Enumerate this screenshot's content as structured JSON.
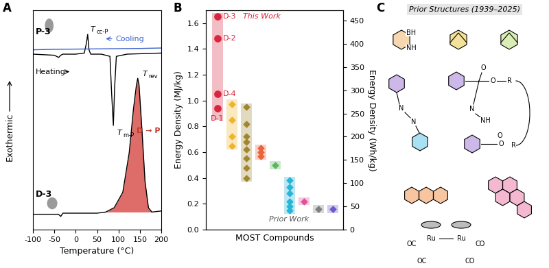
{
  "chart_data": [
    {
      "panel_label": "A",
      "type": "line",
      "x_label": "Temperature (°C)",
      "y_label": "Exothermic",
      "xlim": [
        -100,
        200
      ],
      "xticks": [
        -100,
        -50,
        0,
        50,
        100,
        150,
        200
      ],
      "ylim": [
        0,
        100
      ],
      "tick_labels": "x",
      "grid": false,
      "series": [
        {
          "color": "#000000",
          "x": [
            -100,
            -50,
            -40,
            -35,
            -30,
            0,
            20,
            25,
            28,
            31,
            35,
            60,
            80,
            84,
            88,
            91,
            95,
            120,
            200
          ],
          "y": [
            80,
            79.5,
            78.5,
            79.5,
            80,
            80,
            80.5,
            85,
            89,
            82,
            80,
            80,
            79,
            62,
            47.5,
            65,
            79,
            80,
            80.5
          ]
        },
        {
          "color": "#3a5fcd",
          "x": [
            -100,
            -50,
            0,
            50,
            100,
            150,
            200
          ],
          "y": [
            82,
            82.2,
            82.3,
            82.4,
            82.5,
            82.6,
            82.8
          ]
        },
        {
          "color": "#000000",
          "x": [
            -100,
            -40,
            -35,
            -30,
            0,
            50,
            70,
            90,
            110,
            125,
            135,
            142,
            145,
            148,
            155,
            162,
            170,
            178,
            200
          ],
          "y": [
            7,
            7,
            6,
            7.5,
            7.5,
            7.5,
            8,
            10,
            17,
            35,
            55,
            66,
            69,
            66,
            45,
            22,
            10,
            8,
            8.5
          ]
        }
      ],
      "fill": {
        "series": 2,
        "x_range": [
          70,
          180
        ],
        "color": "#d9534f"
      },
      "texts": {
        "p_sample": "P-3",
        "d_sample": "D-3",
        "heating": "Heating",
        "cooling": "Cooling",
        "reaction": "D → P"
      },
      "reaction_color": "#c0392b",
      "peaks": [
        {
          "main": "T",
          "sub": "cc-P",
          "x": 28,
          "y": 89
        },
        {
          "main": "T",
          "sub": "m-P",
          "x": 88,
          "y": 47.5
        },
        {
          "main": "T",
          "sub": "rev",
          "x": 145,
          "y": 69
        }
      ]
    },
    {
      "panel_label": "B",
      "type": "scatter",
      "y_label": "Energy Density (MJ/kg)",
      "y2_label": "Energy Density (Wh/kg)",
      "x_label": "MOST Compounds",
      "prior_label": "Prior Work",
      "xlim": [
        -0.8,
        8.7
      ],
      "ylim": [
        0,
        1.7
      ],
      "yticks": [
        0.0,
        0.2,
        0.4,
        0.6,
        0.8,
        1.0,
        1.2,
        1.4,
        1.6
      ],
      "y2lim": [
        0,
        472.2
      ],
      "y2ticks": [
        0,
        50,
        100,
        150,
        200,
        250,
        300,
        350,
        400,
        450
      ],
      "tick_labels": "y",
      "grid": false,
      "series": [
        {
          "x": 0,
          "color": "#d7263d",
          "marker": "circle",
          "range": [
            0.85,
            1.68
          ],
          "values": [
            0.94,
            1.48,
            1.05,
            1.65
          ],
          "point_labels": [
            "D-1",
            "D-2",
            "D-4",
            "D-3"
          ],
          "highlight_index": 3,
          "highlight_label": "This Work"
        },
        {
          "x": 1,
          "color": "#f0b429",
          "marker": "diamond",
          "range": [
            0.62,
            1.01
          ],
          "values": [
            0.97,
            0.85,
            0.72,
            0.65
          ]
        },
        {
          "x": 2,
          "color": "#a0862e",
          "marker": "diamond",
          "range": [
            0.37,
            0.98
          ],
          "values": [
            0.95,
            0.82,
            0.72,
            0.68,
            0.62,
            0.55,
            0.48,
            0.4
          ]
        },
        {
          "x": 3,
          "color": "#e8643c",
          "marker": "diamond",
          "range": [
            0.54,
            0.66
          ],
          "values": [
            0.63,
            0.6,
            0.57
          ]
        },
        {
          "x": 4,
          "color": "#5cb85c",
          "marker": "diamond",
          "range": [
            0.47,
            0.53
          ],
          "values": [
            0.5
          ]
        },
        {
          "x": 5,
          "color": "#27b6d8",
          "marker": "diamond",
          "range": [
            0.12,
            0.41
          ],
          "values": [
            0.38,
            0.33,
            0.28,
            0.22,
            0.18,
            0.15
          ]
        },
        {
          "x": 6,
          "color": "#e0519a",
          "marker": "diamond",
          "range": [
            0.19,
            0.25
          ],
          "values": [
            0.22
          ]
        },
        {
          "x": 7,
          "color": "#7f7f7f",
          "marker": "diamond",
          "range": [
            0.13,
            0.19
          ],
          "values": [
            0.16
          ]
        },
        {
          "x": 8,
          "color": "#6a5acd",
          "marker": "diamond",
          "range": [
            0.13,
            0.19
          ],
          "values": [
            0.16
          ]
        }
      ]
    }
  ],
  "structures_panel": {
    "panel_label": "C",
    "title": "Prior Structures (1939–2025)",
    "structure_labels": [
      [
        "BH",
        "NH"
      ],
      [
        "N",
        "N"
      ],
      [
        "O",
        "O",
        "R",
        "N",
        "NH",
        "O",
        "O",
        "R"
      ],
      [
        "OC",
        "Ru",
        "Ru",
        "CO",
        "OC",
        "CO"
      ]
    ]
  }
}
